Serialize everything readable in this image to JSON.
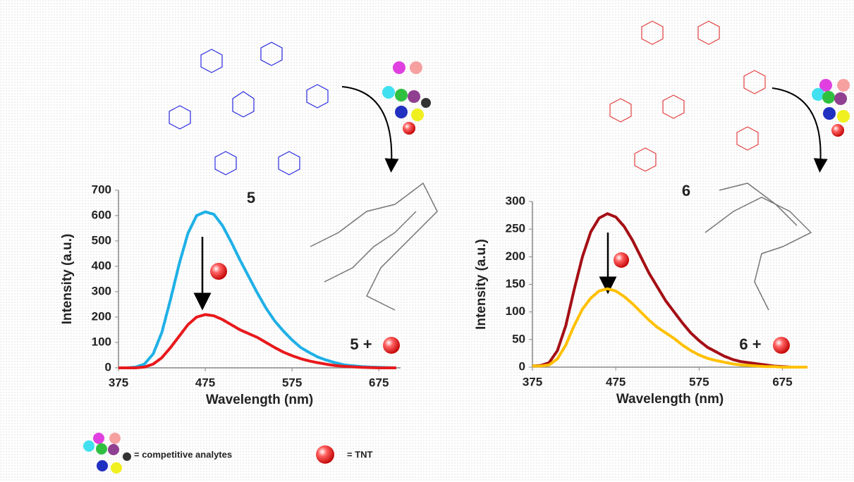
{
  "chart_data": [
    {
      "type": "line",
      "x_label": "Wavelength (nm)",
      "y_label": "Intensity (a.u.)",
      "annotations": [
        "5",
        "5 +"
      ],
      "x": [
        375,
        385,
        395,
        405,
        415,
        425,
        435,
        445,
        455,
        465,
        475,
        485,
        495,
        505,
        515,
        525,
        535,
        545,
        555,
        565,
        575,
        585,
        595,
        605,
        615,
        625,
        635,
        645,
        655,
        665,
        675,
        685,
        695
      ],
      "series": [
        {
          "color": "#1fb0e6",
          "values": [
            0,
            0,
            3,
            15,
            55,
            140,
            270,
            410,
            530,
            600,
            615,
            605,
            560,
            495,
            425,
            360,
            295,
            235,
            185,
            145,
            110,
            80,
            60,
            42,
            30,
            20,
            12,
            8,
            5,
            3,
            2,
            1,
            0
          ]
        },
        {
          "color": "#e8191c",
          "values": [
            0,
            0,
            0,
            3,
            15,
            40,
            80,
            125,
            170,
            200,
            210,
            205,
            190,
            170,
            150,
            135,
            120,
            100,
            80,
            62,
            48,
            36,
            27,
            20,
            14,
            9,
            6,
            4,
            2,
            1,
            0,
            0,
            0
          ]
        }
      ],
      "xlim": [
        375,
        700
      ],
      "xticks": [
        375,
        475,
        575,
        675
      ],
      "ylim": [
        0,
        700
      ],
      "yticks": [
        0,
        100,
        200,
        300,
        400,
        500,
        600,
        700
      ]
    },
    {
      "type": "line",
      "x_label": "Wavelength (nm)",
      "y_label": "Intensity (a.u.)",
      "annotations": [
        "6",
        "6 +"
      ],
      "x": [
        375,
        385,
        395,
        405,
        415,
        425,
        435,
        445,
        455,
        465,
        475,
        485,
        495,
        505,
        515,
        525,
        535,
        545,
        555,
        565,
        575,
        585,
        595,
        605,
        615,
        625,
        635,
        645,
        655,
        665,
        675,
        685,
        695,
        705
      ],
      "series": [
        {
          "color": "#a50f15",
          "values": [
            2,
            3,
            8,
            30,
            75,
            140,
            200,
            245,
            270,
            278,
            272,
            255,
            230,
            200,
            170,
            145,
            120,
            100,
            80,
            62,
            48,
            36,
            28,
            20,
            14,
            10,
            8,
            6,
            4,
            2,
            1,
            0,
            0,
            0
          ]
        },
        {
          "color": "#ffc000",
          "values": [
            2,
            2,
            4,
            15,
            40,
            75,
            105,
            125,
            138,
            142,
            138,
            128,
            115,
            100,
            85,
            72,
            62,
            52,
            40,
            30,
            22,
            16,
            12,
            9,
            6,
            4,
            3,
            2,
            1,
            1,
            0,
            0,
            0,
            0
          ]
        }
      ],
      "xlim": [
        375,
        705
      ],
      "xticks": [
        375,
        475,
        575,
        675
      ],
      "ylim": [
        0,
        300
      ],
      "yticks": [
        0,
        50,
        100,
        150,
        200,
        250,
        300
      ]
    }
  ],
  "legend": {
    "analytes": "= competitive analytes",
    "tnt": "= TNT"
  }
}
